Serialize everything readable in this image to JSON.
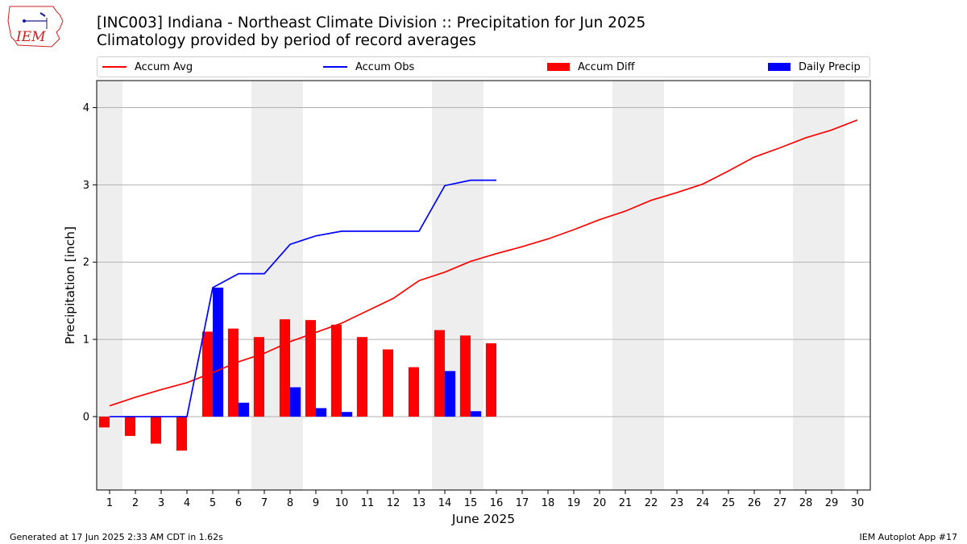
{
  "header": {
    "logo_text": "IEM",
    "title": "[INC003] Indiana - Northeast Climate Division :: Precipitation for Jun 2025",
    "subtitle": "Climatology provided by period of record averages"
  },
  "footer": {
    "generated": "Generated at 17 Jun 2025 2:33 AM CDT in 1.62s",
    "app": "IEM Autoplot App #17"
  },
  "colors": {
    "accum_avg": "#ff0000",
    "accum_obs": "#0000ff",
    "accum_diff": "#ff0000",
    "daily_precip": "#0000ff",
    "weekend_shade": "#eeeeee",
    "grid": "#b0b0b0"
  },
  "chart_data": {
    "type": "bar",
    "xlabel": "June 2025",
    "ylabel": "Precipitation [inch]",
    "xlim": [
      0.5,
      30.5
    ],
    "ylim": [
      -0.95,
      4.35
    ],
    "yticks": [
      0,
      1,
      2,
      3,
      4
    ],
    "grid": "horizontal",
    "legend_position": "top",
    "days": [
      1,
      2,
      3,
      4,
      5,
      6,
      7,
      8,
      9,
      10,
      11,
      12,
      13,
      14,
      15,
      16,
      17,
      18,
      19,
      20,
      21,
      22,
      23,
      24,
      25,
      26,
      27,
      28,
      29,
      30
    ],
    "weekend_days": [
      1,
      7,
      8,
      14,
      15,
      21,
      22,
      28,
      29
    ],
    "series": [
      {
        "name": "Accum Avg",
        "kind": "line",
        "x": [
          1,
          2,
          3,
          4,
          5,
          6,
          7,
          8,
          9,
          10,
          11,
          12,
          13,
          14,
          15,
          16,
          17,
          18,
          19,
          20,
          21,
          22,
          23,
          24,
          25,
          26,
          27,
          28,
          29,
          30
        ],
        "values": [
          0.14,
          0.25,
          0.35,
          0.44,
          0.57,
          0.71,
          0.82,
          0.97,
          1.09,
          1.21,
          1.37,
          1.53,
          1.76,
          1.87,
          2.01,
          2.11,
          2.2,
          2.3,
          2.42,
          2.55,
          2.66,
          2.8,
          2.9,
          3.01,
          3.18,
          3.36,
          3.48,
          3.61,
          3.71,
          3.84
        ]
      },
      {
        "name": "Accum Obs",
        "kind": "line",
        "x": [
          1,
          2,
          3,
          4,
          5,
          6,
          7,
          8,
          9,
          10,
          11,
          12,
          13,
          14,
          15,
          16
        ],
        "values": [
          0.0,
          0.0,
          0.0,
          0.0,
          1.67,
          1.85,
          1.85,
          2.23,
          2.34,
          2.4,
          2.4,
          2.4,
          2.4,
          2.99,
          3.06,
          3.06
        ]
      },
      {
        "name": "Accum Diff",
        "kind": "bar",
        "x": [
          1,
          2,
          3,
          4,
          5,
          6,
          7,
          8,
          9,
          10,
          11,
          12,
          13,
          14,
          15,
          16
        ],
        "values": [
          -0.14,
          -0.25,
          -0.35,
          -0.44,
          1.1,
          1.14,
          1.03,
          1.26,
          1.25,
          1.19,
          1.03,
          0.87,
          0.64,
          1.12,
          1.05,
          0.95
        ]
      },
      {
        "name": "Daily Precip",
        "kind": "bar",
        "x": [
          1,
          2,
          3,
          4,
          5,
          6,
          7,
          8,
          9,
          10,
          11,
          12,
          13,
          14,
          15,
          16
        ],
        "values": [
          0,
          0,
          0,
          0,
          1.67,
          0.18,
          0,
          0.38,
          0.11,
          0.06,
          0,
          0,
          0,
          0.59,
          0.07,
          0
        ]
      }
    ]
  }
}
